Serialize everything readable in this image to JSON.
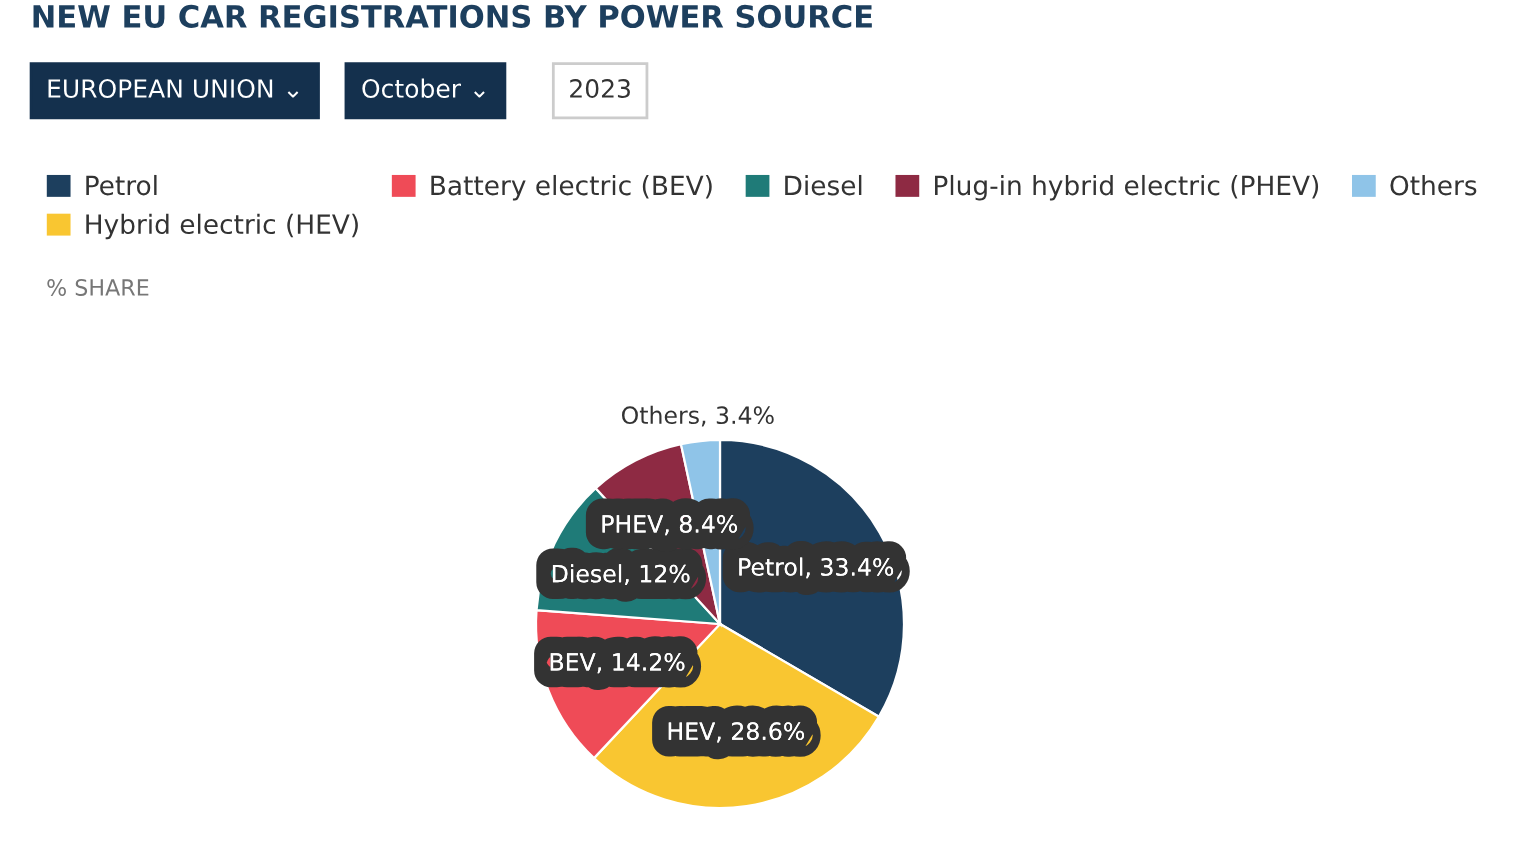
{
  "chart_data": {
    "type": "pie",
    "title": "NEW EU CAR REGISTRATIONS BY POWER SOURCE",
    "subtitle": "% SHARE",
    "annotations": [
      "EUROPEAN UNION ⌄",
      "October ⌄",
      "2023"
    ],
    "categories": [
      "Petrol",
      "Hybrid electric (HEV)",
      "Battery electric (BEV)",
      "Diesel",
      "Plug-in hybrid electric (PHEV)",
      "Others"
    ],
    "values": [
      33.4,
      28.6,
      14.2,
      12,
      8.4,
      3.4
    ],
    "colors": [
      "#1d3f5e",
      "#f9c631",
      "#ef4b57",
      "#1f7b78",
      "#8e2a43",
      "#8fc4e8"
    ],
    "value_labels": [
      "Petrol, 33.4%",
      "HEV, 28.6%",
      "BEV, 14.2%",
      "Diesel, 12%",
      "PHEV, 8.4%",
      "Others, 3.4%"
    ],
    "legend": "top"
  }
}
